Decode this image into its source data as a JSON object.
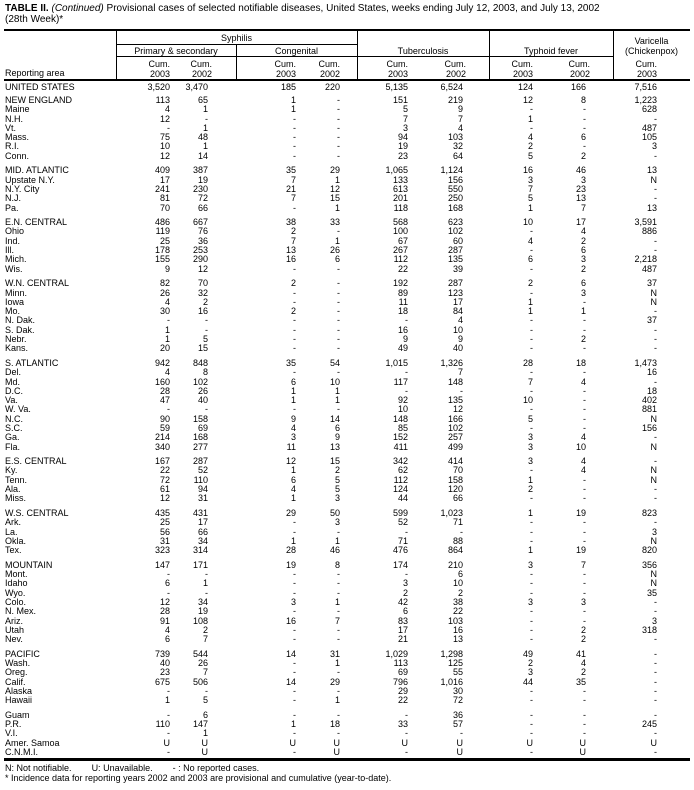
{
  "title": {
    "prefix": "TABLE II.",
    "continued": "(Continued)",
    "text": "Provisional cases of selected notifiable diseases, United States, weeks ending July 12, 2003, and July 13, 2002",
    "line2": "(28th Week)*"
  },
  "header": {
    "syphilis": "Syphilis",
    "primary_secondary": "Primary & secondary",
    "congenital": "Congenital",
    "tuberculosis": "Tuberculosis",
    "typhoid": "Typhoid fever",
    "varicella": "Varicella",
    "chickenpox": "(Chickenpox)",
    "reporting_area": "Reporting area",
    "cum": "Cum.",
    "years": [
      "2003",
      "2002",
      "2003",
      "2002",
      "2003",
      "2002",
      "2003",
      "2002",
      "2003"
    ]
  },
  "us_row": [
    "UNITED STATES",
    "3,520",
    "3,470",
    "185",
    "220",
    "5,135",
    "6,524",
    "124",
    "166",
    "7,516"
  ],
  "groups": [
    [
      [
        "NEW ENGLAND",
        "113",
        "65",
        "1",
        "-",
        "151",
        "219",
        "12",
        "8",
        "1,223"
      ],
      [
        "Maine",
        "4",
        "1",
        "1",
        "-",
        "5",
        "9",
        "-",
        "-",
        "628"
      ],
      [
        "N.H.",
        "12",
        "-",
        "-",
        "-",
        "7",
        "7",
        "1",
        "-",
        "-"
      ],
      [
        "Vt.",
        "-",
        "1",
        "-",
        "-",
        "3",
        "4",
        "-",
        "-",
        "487"
      ],
      [
        "Mass.",
        "75",
        "48",
        "-",
        "-",
        "94",
        "103",
        "4",
        "6",
        "105"
      ],
      [
        "R.I.",
        "10",
        "1",
        "-",
        "-",
        "19",
        "32",
        "2",
        "-",
        "3"
      ],
      [
        "Conn.",
        "12",
        "14",
        "-",
        "-",
        "23",
        "64",
        "5",
        "2",
        "-"
      ]
    ],
    [
      [
        "MID. ATLANTIC",
        "409",
        "387",
        "35",
        "29",
        "1,065",
        "1,124",
        "16",
        "46",
        "13"
      ],
      [
        "Upstate N.Y.",
        "17",
        "19",
        "7",
        "1",
        "133",
        "156",
        "3",
        "3",
        "N"
      ],
      [
        "N.Y. City",
        "241",
        "230",
        "21",
        "12",
        "613",
        "550",
        "7",
        "23",
        "-"
      ],
      [
        "N.J.",
        "81",
        "72",
        "7",
        "15",
        "201",
        "250",
        "5",
        "13",
        "-"
      ],
      [
        "Pa.",
        "70",
        "66",
        "-",
        "1",
        "118",
        "168",
        "1",
        "7",
        "13"
      ]
    ],
    [
      [
        "E.N. CENTRAL",
        "486",
        "667",
        "38",
        "33",
        "568",
        "623",
        "10",
        "17",
        "3,591"
      ],
      [
        "Ohio",
        "119",
        "76",
        "2",
        "-",
        "100",
        "102",
        "-",
        "4",
        "886"
      ],
      [
        "Ind.",
        "25",
        "36",
        "7",
        "1",
        "67",
        "60",
        "4",
        "2",
        "-"
      ],
      [
        "Ill.",
        "178",
        "253",
        "13",
        "26",
        "267",
        "287",
        "-",
        "6",
        "-"
      ],
      [
        "Mich.",
        "155",
        "290",
        "16",
        "6",
        "112",
        "135",
        "6",
        "3",
        "2,218"
      ],
      [
        "Wis.",
        "9",
        "12",
        "-",
        "-",
        "22",
        "39",
        "-",
        "2",
        "487"
      ]
    ],
    [
      [
        "W.N. CENTRAL",
        "82",
        "70",
        "2",
        "-",
        "192",
        "287",
        "2",
        "6",
        "37"
      ],
      [
        "Minn.",
        "26",
        "32",
        "-",
        "-",
        "89",
        "123",
        "-",
        "3",
        "N"
      ],
      [
        "Iowa",
        "4",
        "2",
        "-",
        "-",
        "11",
        "17",
        "1",
        "-",
        "N"
      ],
      [
        "Mo.",
        "30",
        "16",
        "2",
        "-",
        "18",
        "84",
        "1",
        "1",
        "-"
      ],
      [
        "N. Dak.",
        "-",
        "-",
        "-",
        "-",
        "-",
        "4",
        "-",
        "-",
        "37"
      ],
      [
        "S. Dak.",
        "1",
        "-",
        "-",
        "-",
        "16",
        "10",
        "-",
        "-",
        "-"
      ],
      [
        "Nebr.",
        "1",
        "5",
        "-",
        "-",
        "9",
        "9",
        "-",
        "2",
        "-"
      ],
      [
        "Kans.",
        "20",
        "15",
        "-",
        "-",
        "49",
        "40",
        "-",
        "-",
        "-"
      ]
    ],
    [
      [
        "S. ATLANTIC",
        "942",
        "848",
        "35",
        "54",
        "1,015",
        "1,326",
        "28",
        "18",
        "1,473"
      ],
      [
        "Del.",
        "4",
        "8",
        "-",
        "-",
        "-",
        "7",
        "-",
        "-",
        "16"
      ],
      [
        "Md.",
        "160",
        "102",
        "6",
        "10",
        "117",
        "148",
        "7",
        "4",
        "-"
      ],
      [
        "D.C.",
        "28",
        "26",
        "1",
        "1",
        "-",
        "-",
        "-",
        "-",
        "18"
      ],
      [
        "Va.",
        "47",
        "40",
        "1",
        "1",
        "92",
        "135",
        "10",
        "-",
        "402"
      ],
      [
        "W. Va.",
        "-",
        "-",
        "-",
        "-",
        "10",
        "12",
        "-",
        "-",
        "881"
      ],
      [
        "N.C.",
        "90",
        "158",
        "9",
        "14",
        "148",
        "166",
        "5",
        "-",
        "N"
      ],
      [
        "S.C.",
        "59",
        "69",
        "4",
        "6",
        "85",
        "102",
        "-",
        "-",
        "156"
      ],
      [
        "Ga.",
        "214",
        "168",
        "3",
        "9",
        "152",
        "257",
        "3",
        "4",
        "-"
      ],
      [
        "Fla.",
        "340",
        "277",
        "11",
        "13",
        "411",
        "499",
        "3",
        "10",
        "N"
      ]
    ],
    [
      [
        "E.S. CENTRAL",
        "167",
        "287",
        "12",
        "15",
        "342",
        "414",
        "3",
        "4",
        "-"
      ],
      [
        "Ky.",
        "22",
        "52",
        "1",
        "2",
        "62",
        "70",
        "-",
        "4",
        "N"
      ],
      [
        "Tenn.",
        "72",
        "110",
        "6",
        "5",
        "112",
        "158",
        "1",
        "-",
        "N"
      ],
      [
        "Ala.",
        "61",
        "94",
        "4",
        "5",
        "124",
        "120",
        "2",
        "-",
        "-"
      ],
      [
        "Miss.",
        "12",
        "31",
        "1",
        "3",
        "44",
        "66",
        "-",
        "-",
        "-"
      ]
    ],
    [
      [
        "W.S. CENTRAL",
        "435",
        "431",
        "29",
        "50",
        "599",
        "1,023",
        "1",
        "19",
        "823"
      ],
      [
        "Ark.",
        "25",
        "17",
        "-",
        "3",
        "52",
        "71",
        "-",
        "-",
        "-"
      ],
      [
        "La.",
        "56",
        "66",
        "-",
        "-",
        "-",
        "-",
        "-",
        "-",
        "3"
      ],
      [
        "Okla.",
        "31",
        "34",
        "1",
        "1",
        "71",
        "88",
        "-",
        "-",
        "N"
      ],
      [
        "Tex.",
        "323",
        "314",
        "28",
        "46",
        "476",
        "864",
        "1",
        "19",
        "820"
      ]
    ],
    [
      [
        "MOUNTAIN",
        "147",
        "171",
        "19",
        "8",
        "174",
        "210",
        "3",
        "7",
        "356"
      ],
      [
        "Mont.",
        "-",
        "-",
        "-",
        "-",
        "-",
        "6",
        "-",
        "-",
        "N"
      ],
      [
        "Idaho",
        "6",
        "1",
        "-",
        "-",
        "3",
        "10",
        "-",
        "-",
        "N"
      ],
      [
        "Wyo.",
        "-",
        "-",
        "-",
        "-",
        "2",
        "2",
        "-",
        "-",
        "35"
      ],
      [
        "Colo.",
        "12",
        "34",
        "3",
        "1",
        "42",
        "38",
        "3",
        "3",
        "-"
      ],
      [
        "N. Mex.",
        "28",
        "19",
        "-",
        "-",
        "6",
        "22",
        "-",
        "-",
        "-"
      ],
      [
        "Ariz.",
        "91",
        "108",
        "16",
        "7",
        "83",
        "103",
        "-",
        "-",
        "3"
      ],
      [
        "Utah",
        "4",
        "2",
        "-",
        "-",
        "17",
        "16",
        "-",
        "2",
        "318"
      ],
      [
        "Nev.",
        "6",
        "7",
        "-",
        "-",
        "21",
        "13",
        "-",
        "2",
        "-"
      ]
    ],
    [
      [
        "PACIFIC",
        "739",
        "544",
        "14",
        "31",
        "1,029",
        "1,298",
        "49",
        "41",
        "-"
      ],
      [
        "Wash.",
        "40",
        "26",
        "-",
        "1",
        "113",
        "125",
        "2",
        "4",
        "-"
      ],
      [
        "Oreg.",
        "23",
        "7",
        "-",
        "-",
        "69",
        "55",
        "3",
        "2",
        "-"
      ],
      [
        "Calif.",
        "675",
        "506",
        "14",
        "29",
        "796",
        "1,016",
        "44",
        "35",
        "-"
      ],
      [
        "Alaska",
        "-",
        "-",
        "-",
        "-",
        "29",
        "30",
        "-",
        "-",
        "-"
      ],
      [
        "Hawaii",
        "1",
        "5",
        "-",
        "1",
        "22",
        "72",
        "-",
        "-",
        "-"
      ]
    ],
    [
      [
        "Guam",
        "-",
        "6",
        "-",
        "-",
        "-",
        "36",
        "-",
        "-",
        "-"
      ],
      [
        "P.R.",
        "110",
        "147",
        "1",
        "18",
        "33",
        "57",
        "-",
        "-",
        "245"
      ],
      [
        "V.I.",
        "-",
        "1",
        "-",
        "-",
        "-",
        "-",
        "-",
        "-",
        "-"
      ],
      [
        "Amer. Samoa",
        "U",
        "U",
        "U",
        "U",
        "U",
        "U",
        "U",
        "U",
        "U"
      ],
      [
        "C.N.M.I.",
        "-",
        "U",
        "-",
        "U",
        "-",
        "U",
        "-",
        "U",
        "-"
      ]
    ]
  ],
  "footnotes": {
    "legend_n": "N: Not notifiable.",
    "legend_u": "U: Unavailable.",
    "legend_dash": "- : No reported cases.",
    "asterisk": "* Incidence data for reporting years 2002 and 2003 are provisional and cumulative (year-to-date)."
  }
}
